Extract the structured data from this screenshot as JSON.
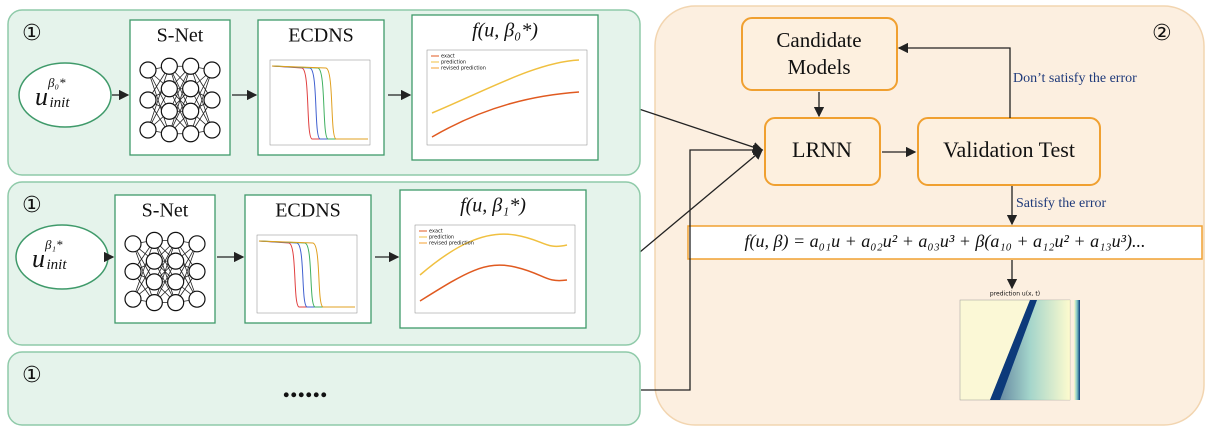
{
  "panels": [
    {
      "marker": "①",
      "net": "S-Net",
      "solver": "ECDNS",
      "output": "f(u, β₀*)",
      "input": {
        "base": "u",
        "sup": "β₀*",
        "sub": "init"
      },
      "legend": [
        "exact",
        "prediction",
        "revised prediction"
      ]
    },
    {
      "marker": "①",
      "net": "S-Net",
      "solver": "ECDNS",
      "output": "f(u, β₁*)",
      "input": {
        "base": "u",
        "sup": "β₁*",
        "sub": "init"
      },
      "legend": [
        "exact",
        "prediction",
        "revised prediction"
      ]
    },
    {
      "marker": "①",
      "ellipsis": "......"
    }
  ],
  "right": {
    "marker": "②",
    "candidate": [
      "Candidate",
      "Models"
    ],
    "lrnn": "LRNN",
    "validation": "Validation Test",
    "fail": "Don’t satisfy the error",
    "pass": "Satisfy the error",
    "formula": "f(u, β) = a₀₁u + a₀₂u² + a₀₃u³ + β(a₁₀ + a₁₂u² + a₁₃u³)...",
    "heatmap_title": "prediction u(x, t)"
  }
}
